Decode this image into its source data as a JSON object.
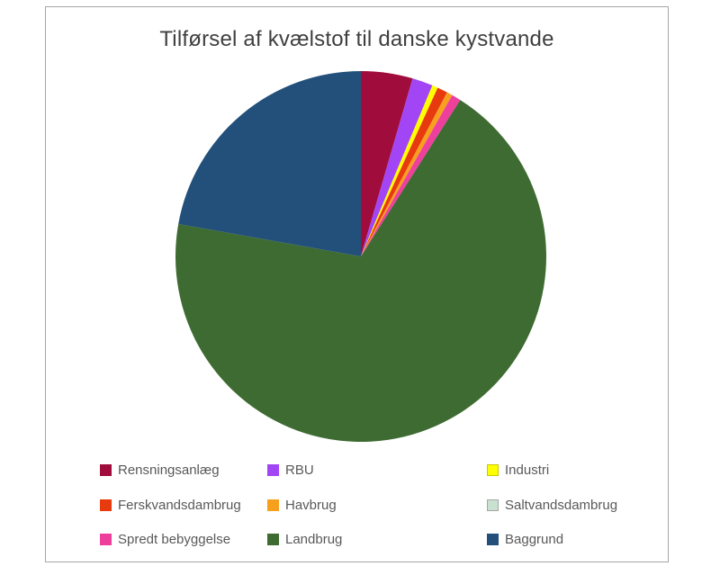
{
  "style_colors": {
    "frame_border": "#A6A6A6",
    "title_text": "#3F3F3F",
    "legend_text": "#595959",
    "background": "#FFFFFF"
  },
  "chart_data": {
    "type": "pie",
    "title": "Tilførsel af kvælstof til danske kystvande",
    "categories": [
      "Rensningsanlæg",
      "RBU",
      "Industri",
      "Ferskvandsdambrug",
      "Havbrug",
      "Saltvandsdambrug",
      "Spredt bebyggelse",
      "Landbrug",
      "Baggrund"
    ],
    "values": [
      4.5,
      1.8,
      0.5,
      0.9,
      0.5,
      0.0,
      0.8,
      68.8,
      22.2
    ],
    "colors": [
      "#A00D3C",
      "#A245F5",
      "#FFFF00",
      "#E83A0F",
      "#F6A01D",
      "#C9E1D1",
      "#EE3F9D",
      "#3E6B31",
      "#22507A"
    ],
    "start_angle_deg": 0,
    "direction": "clockwise",
    "legend_position": "bottom",
    "legend_columns": 3
  },
  "legend": {
    "swatch_borders": [
      "#A00D3C",
      "#A245F5",
      "#C8C800",
      "#E83A0F",
      "#F6A01D",
      "#A6A6A6",
      "#EE3F9D",
      "#3E6B31",
      "#22507A"
    ]
  }
}
